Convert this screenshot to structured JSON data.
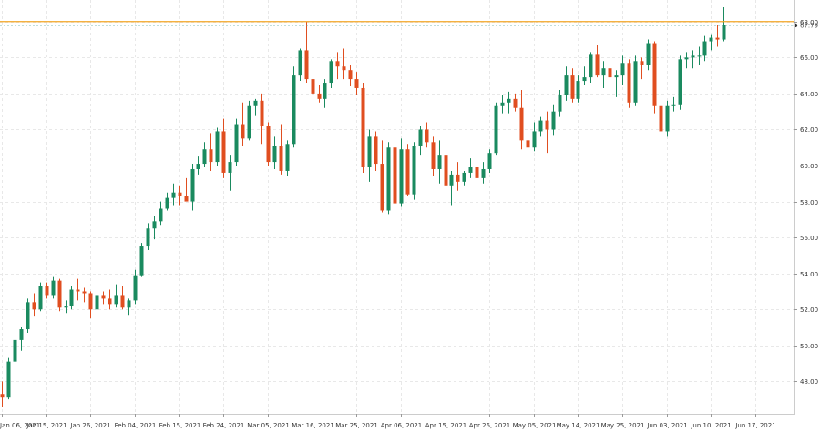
{
  "chart_data": {
    "type": "candlestick",
    "grid": true,
    "y_axis_position": "right",
    "ylim": [
      46.2,
      69.0
    ],
    "y_ticks": [
      "48.00",
      "50.00",
      "52.00",
      "54.00",
      "56.00",
      "58.00",
      "60.00",
      "62.00",
      "64.00",
      "66.00",
      "68.00"
    ],
    "x_ticks": [
      "Jan 06, 2021",
      "Jan 15, 2021",
      "Jan 26, 2021",
      "Feb 04, 2021",
      "Feb 15, 2021",
      "Feb 24, 2021",
      "Mar 05, 2021",
      "Mar 16, 2021",
      "Mar 25, 2021",
      "Apr 06, 2021",
      "Apr 15, 2021",
      "Apr 26, 2021",
      "May 05, 2021",
      "May 14, 2021",
      "May 25, 2021",
      "Jun 03, 2021",
      "Jun 10, 2021",
      "Jun 17, 2021"
    ],
    "x_tick_index": [
      0,
      7,
      14,
      21,
      28,
      35,
      42,
      49,
      56,
      63,
      70,
      77,
      84,
      91,
      98,
      105,
      112,
      119
    ],
    "colors": {
      "up": "#1a8a5f",
      "down": "#e04e20",
      "level": "#f2a626",
      "current": "#5aa9a0",
      "grid": "#e8e8e8"
    },
    "reference_line": {
      "value": 68.0,
      "label": "68.00"
    },
    "current_price": {
      "value": 67.79,
      "label": "67.79"
    },
    "candles": [
      {
        "o": 47.3,
        "h": 48.0,
        "l": 46.6,
        "c": 47.1
      },
      {
        "o": 47.1,
        "h": 49.3,
        "l": 47.0,
        "c": 49.1
      },
      {
        "o": 49.1,
        "h": 50.8,
        "l": 49.0,
        "c": 50.3
      },
      {
        "o": 50.3,
        "h": 51.0,
        "l": 49.7,
        "c": 50.9
      },
      {
        "o": 50.9,
        "h": 52.6,
        "l": 50.7,
        "c": 52.4
      },
      {
        "o": 52.4,
        "h": 52.9,
        "l": 51.6,
        "c": 52.0
      },
      {
        "o": 52.0,
        "h": 53.5,
        "l": 51.9,
        "c": 53.3
      },
      {
        "o": 53.3,
        "h": 53.5,
        "l": 52.6,
        "c": 52.8
      },
      {
        "o": 52.8,
        "h": 53.8,
        "l": 52.6,
        "c": 53.6
      },
      {
        "o": 53.6,
        "h": 53.7,
        "l": 51.9,
        "c": 52.1
      },
      {
        "o": 52.1,
        "h": 52.5,
        "l": 51.8,
        "c": 52.2
      },
      {
        "o": 52.2,
        "h": 53.3,
        "l": 52.0,
        "c": 53.1
      },
      {
        "o": 53.1,
        "h": 53.7,
        "l": 52.5,
        "c": 53.0
      },
      {
        "o": 53.0,
        "h": 53.2,
        "l": 52.4,
        "c": 52.9
      },
      {
        "o": 52.9,
        "h": 53.0,
        "l": 51.5,
        "c": 52.0
      },
      {
        "o": 52.0,
        "h": 53.3,
        "l": 51.9,
        "c": 52.8
      },
      {
        "o": 52.8,
        "h": 53.0,
        "l": 52.3,
        "c": 52.6
      },
      {
        "o": 52.6,
        "h": 53.1,
        "l": 52.0,
        "c": 52.3
      },
      {
        "o": 52.3,
        "h": 53.4,
        "l": 52.1,
        "c": 52.8
      },
      {
        "o": 52.8,
        "h": 53.3,
        "l": 52.0,
        "c": 52.1
      },
      {
        "o": 52.1,
        "h": 52.6,
        "l": 51.7,
        "c": 52.5
      },
      {
        "o": 52.5,
        "h": 54.2,
        "l": 52.3,
        "c": 53.9
      },
      {
        "o": 53.9,
        "h": 55.7,
        "l": 53.8,
        "c": 55.5
      },
      {
        "o": 55.5,
        "h": 56.8,
        "l": 55.3,
        "c": 56.5
      },
      {
        "o": 56.5,
        "h": 57.2,
        "l": 55.9,
        "c": 56.9
      },
      {
        "o": 56.9,
        "h": 58.0,
        "l": 56.7,
        "c": 57.6
      },
      {
        "o": 57.6,
        "h": 58.5,
        "l": 57.5,
        "c": 58.2
      },
      {
        "o": 58.2,
        "h": 59.0,
        "l": 57.8,
        "c": 58.5
      },
      {
        "o": 58.5,
        "h": 58.9,
        "l": 57.8,
        "c": 58.3
      },
      {
        "o": 58.3,
        "h": 59.3,
        "l": 58.2,
        "c": 58.0
      },
      {
        "o": 58.0,
        "h": 60.1,
        "l": 57.5,
        "c": 59.8
      },
      {
        "o": 59.8,
        "h": 60.5,
        "l": 59.5,
        "c": 60.1
      },
      {
        "o": 60.1,
        "h": 61.3,
        "l": 59.9,
        "c": 60.9
      },
      {
        "o": 60.9,
        "h": 61.8,
        "l": 59.7,
        "c": 60.2
      },
      {
        "o": 60.2,
        "h": 62.1,
        "l": 60.0,
        "c": 61.9
      },
      {
        "o": 61.9,
        "h": 62.6,
        "l": 59.3,
        "c": 59.6
      },
      {
        "o": 59.6,
        "h": 60.6,
        "l": 58.6,
        "c": 60.2
      },
      {
        "o": 60.2,
        "h": 62.6,
        "l": 60.0,
        "c": 62.3
      },
      {
        "o": 62.3,
        "h": 63.5,
        "l": 61.1,
        "c": 61.5
      },
      {
        "o": 61.5,
        "h": 63.6,
        "l": 61.4,
        "c": 63.3
      },
      {
        "o": 63.3,
        "h": 63.7,
        "l": 62.8,
        "c": 63.6
      },
      {
        "o": 63.6,
        "h": 64.0,
        "l": 61.2,
        "c": 62.2
      },
      {
        "o": 62.2,
        "h": 62.4,
        "l": 60.0,
        "c": 60.2
      },
      {
        "o": 60.2,
        "h": 61.6,
        "l": 59.8,
        "c": 61.1
      },
      {
        "o": 61.1,
        "h": 62.3,
        "l": 59.5,
        "c": 59.7
      },
      {
        "o": 59.7,
        "h": 61.4,
        "l": 59.4,
        "c": 61.2
      },
      {
        "o": 61.2,
        "h": 65.5,
        "l": 61.0,
        "c": 65.0
      },
      {
        "o": 65.0,
        "h": 66.5,
        "l": 64.7,
        "c": 66.4
      },
      {
        "o": 66.4,
        "h": 68.0,
        "l": 64.6,
        "c": 64.8
      },
      {
        "o": 64.8,
        "h": 65.5,
        "l": 63.8,
        "c": 64.0
      },
      {
        "o": 64.0,
        "h": 64.5,
        "l": 63.5,
        "c": 63.7
      },
      {
        "o": 63.7,
        "h": 64.8,
        "l": 63.2,
        "c": 64.6
      },
      {
        "o": 64.6,
        "h": 65.9,
        "l": 64.3,
        "c": 65.8
      },
      {
        "o": 65.8,
        "h": 66.3,
        "l": 64.8,
        "c": 65.5
      },
      {
        "o": 65.5,
        "h": 66.5,
        "l": 64.8,
        "c": 65.3
      },
      {
        "o": 65.3,
        "h": 65.6,
        "l": 64.4,
        "c": 64.8
      },
      {
        "o": 64.8,
        "h": 65.2,
        "l": 63.9,
        "c": 64.3
      },
      {
        "o": 64.3,
        "h": 64.6,
        "l": 59.6,
        "c": 59.9
      },
      {
        "o": 59.9,
        "h": 62.0,
        "l": 59.1,
        "c": 61.6
      },
      {
        "o": 61.6,
        "h": 61.9,
        "l": 59.7,
        "c": 60.1
      },
      {
        "o": 60.1,
        "h": 61.4,
        "l": 57.4,
        "c": 57.5
      },
      {
        "o": 57.5,
        "h": 61.3,
        "l": 57.3,
        "c": 61.0
      },
      {
        "o": 61.0,
        "h": 61.2,
        "l": 57.4,
        "c": 57.9
      },
      {
        "o": 57.9,
        "h": 61.5,
        "l": 57.7,
        "c": 60.9
      },
      {
        "o": 60.9,
        "h": 61.2,
        "l": 58.3,
        "c": 58.4
      },
      {
        "o": 58.4,
        "h": 61.3,
        "l": 58.1,
        "c": 61.1
      },
      {
        "o": 61.1,
        "h": 62.2,
        "l": 60.6,
        "c": 62.0
      },
      {
        "o": 62.0,
        "h": 62.4,
        "l": 61.0,
        "c": 61.3
      },
      {
        "o": 61.3,
        "h": 61.6,
        "l": 59.4,
        "c": 59.8
      },
      {
        "o": 59.8,
        "h": 61.4,
        "l": 59.0,
        "c": 60.6
      },
      {
        "o": 60.6,
        "h": 61.2,
        "l": 58.6,
        "c": 58.9
      },
      {
        "o": 58.9,
        "h": 59.7,
        "l": 57.8,
        "c": 59.5
      },
      {
        "o": 59.5,
        "h": 60.2,
        "l": 58.6,
        "c": 59.1
      },
      {
        "o": 59.1,
        "h": 59.7,
        "l": 58.9,
        "c": 59.6
      },
      {
        "o": 59.6,
        "h": 60.4,
        "l": 59.3,
        "c": 59.9
      },
      {
        "o": 59.9,
        "h": 60.4,
        "l": 58.8,
        "c": 59.3
      },
      {
        "o": 59.3,
        "h": 60.2,
        "l": 59.0,
        "c": 59.8
      },
      {
        "o": 59.8,
        "h": 60.9,
        "l": 59.6,
        "c": 60.7
      },
      {
        "o": 60.7,
        "h": 63.5,
        "l": 60.6,
        "c": 63.3
      },
      {
        "o": 63.3,
        "h": 63.9,
        "l": 62.9,
        "c": 63.5
      },
      {
        "o": 63.5,
        "h": 64.1,
        "l": 62.9,
        "c": 63.7
      },
      {
        "o": 63.7,
        "h": 64.0,
        "l": 63.0,
        "c": 63.2
      },
      {
        "o": 63.2,
        "h": 64.2,
        "l": 60.9,
        "c": 61.4
      },
      {
        "o": 61.4,
        "h": 62.5,
        "l": 60.7,
        "c": 61.0
      },
      {
        "o": 61.0,
        "h": 62.4,
        "l": 60.8,
        "c": 61.9
      },
      {
        "o": 61.9,
        "h": 62.7,
        "l": 61.6,
        "c": 62.5
      },
      {
        "o": 62.5,
        "h": 63.0,
        "l": 60.7,
        "c": 62.0
      },
      {
        "o": 62.0,
        "h": 63.4,
        "l": 61.7,
        "c": 63.0
      },
      {
        "o": 63.0,
        "h": 64.2,
        "l": 62.7,
        "c": 63.9
      },
      {
        "o": 63.9,
        "h": 65.5,
        "l": 63.6,
        "c": 65.0
      },
      {
        "o": 65.0,
        "h": 65.4,
        "l": 63.5,
        "c": 63.7
      },
      {
        "o": 63.7,
        "h": 65.0,
        "l": 63.5,
        "c": 64.7
      },
      {
        "o": 64.7,
        "h": 65.5,
        "l": 64.5,
        "c": 64.9
      },
      {
        "o": 64.9,
        "h": 66.3,
        "l": 64.6,
        "c": 66.2
      },
      {
        "o": 66.2,
        "h": 66.7,
        "l": 64.9,
        "c": 65.0
      },
      {
        "o": 65.0,
        "h": 65.8,
        "l": 64.3,
        "c": 65.4
      },
      {
        "o": 65.4,
        "h": 65.6,
        "l": 64.0,
        "c": 64.9
      },
      {
        "o": 64.9,
        "h": 65.3,
        "l": 63.8,
        "c": 65.0
      },
      {
        "o": 65.0,
        "h": 66.1,
        "l": 64.5,
        "c": 65.7
      },
      {
        "o": 65.7,
        "h": 65.9,
        "l": 63.2,
        "c": 63.5
      },
      {
        "o": 63.5,
        "h": 66.1,
        "l": 63.3,
        "c": 65.8
      },
      {
        "o": 65.8,
        "h": 66.0,
        "l": 64.8,
        "c": 65.6
      },
      {
        "o": 65.6,
        "h": 67.0,
        "l": 65.3,
        "c": 66.8
      },
      {
        "o": 66.8,
        "h": 66.9,
        "l": 62.9,
        "c": 63.3
      },
      {
        "o": 63.3,
        "h": 64.1,
        "l": 61.5,
        "c": 61.9
      },
      {
        "o": 61.9,
        "h": 63.6,
        "l": 61.6,
        "c": 63.3
      },
      {
        "o": 63.3,
        "h": 63.8,
        "l": 63.0,
        "c": 63.4
      },
      {
        "o": 63.4,
        "h": 66.1,
        "l": 63.1,
        "c": 65.9
      },
      {
        "o": 65.9,
        "h": 66.3,
        "l": 65.4,
        "c": 66.0
      },
      {
        "o": 66.0,
        "h": 66.4,
        "l": 65.4,
        "c": 66.1
      },
      {
        "o": 66.1,
        "h": 66.6,
        "l": 65.6,
        "c": 66.1
      },
      {
        "o": 66.1,
        "h": 67.2,
        "l": 65.8,
        "c": 66.9
      },
      {
        "o": 66.9,
        "h": 67.3,
        "l": 66.4,
        "c": 67.1
      },
      {
        "o": 67.1,
        "h": 67.8,
        "l": 66.6,
        "c": 67.0
      },
      {
        "o": 67.0,
        "h": 68.8,
        "l": 66.9,
        "c": 67.79
      }
    ]
  }
}
